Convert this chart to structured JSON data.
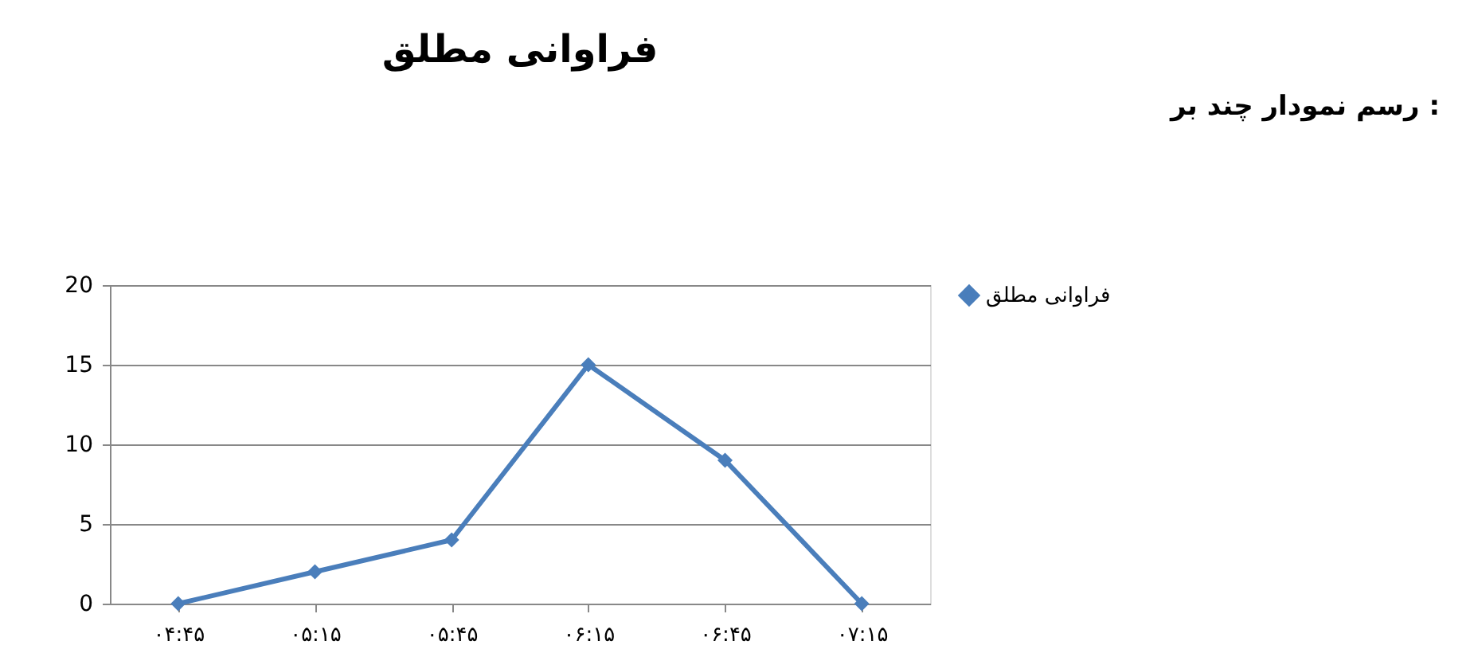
{
  "chart_data": {
    "type": "line",
    "title": "فراوانی مطلق",
    "annotations": [
      "رسم نمودار چند بر :"
    ],
    "categories": [
      "۰۴:۴۵",
      "۰۵:۱۵",
      "۰۵:۴۵",
      "۰۶:۱۵",
      "۰۶:۴۵",
      "۰۷:۱۵"
    ],
    "series": [
      {
        "name": "فراوانی مطلق",
        "color": "#4a7ebb",
        "values": [
          0,
          2,
          4,
          15,
          9,
          0
        ]
      }
    ],
    "ylim": [
      0,
      20
    ],
    "yticks": [
      0,
      5,
      10,
      15,
      20
    ],
    "grid": "y",
    "legend": "right",
    "marker": "diamond",
    "line_style": "solid"
  }
}
